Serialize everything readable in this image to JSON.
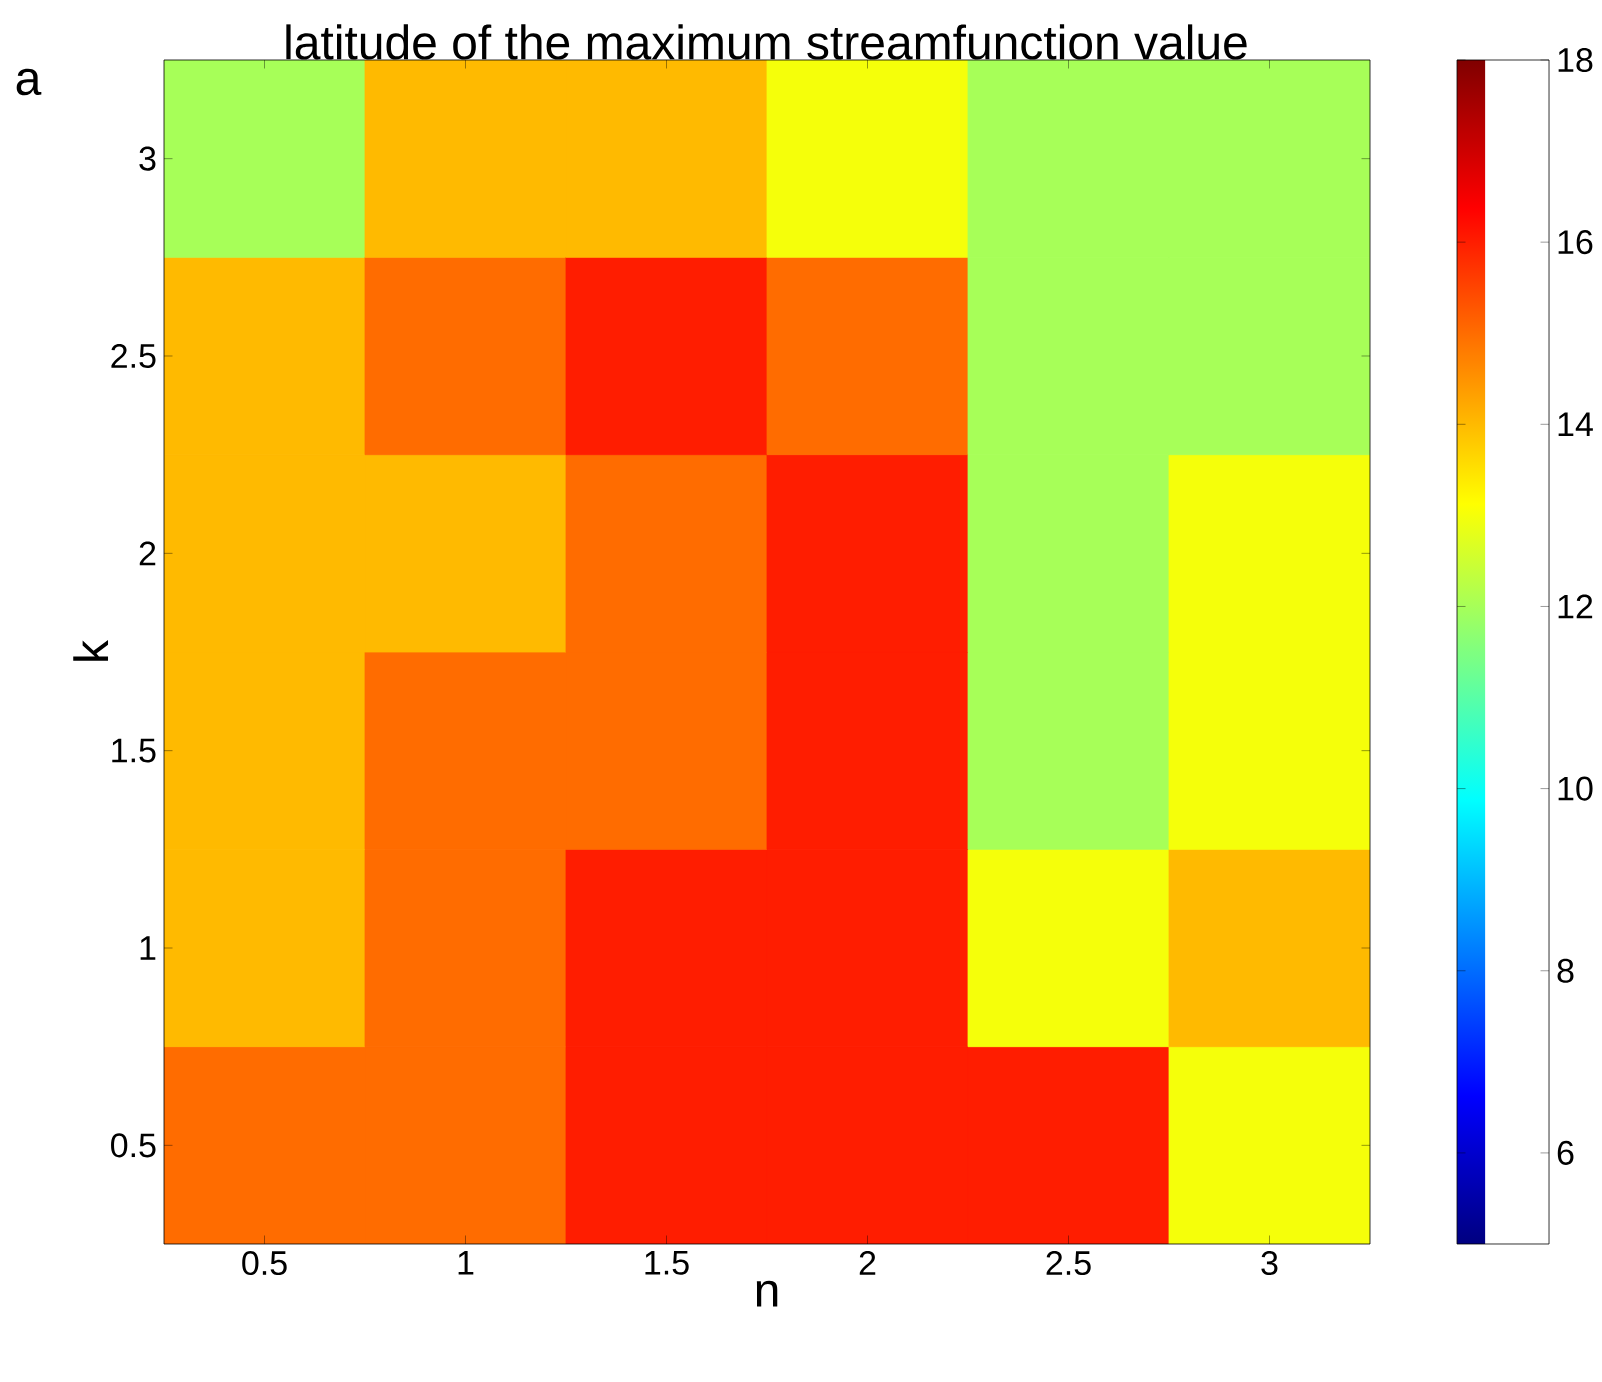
{
  "chart_data": {
    "type": "heatmap",
    "title": "latitude of the maximum streamfunction value",
    "xlabel": "n",
    "ylabel": "k",
    "annotations": [
      "a"
    ],
    "categories": [
      "0.5",
      "1",
      "1.5",
      "2",
      "2.5",
      "3"
    ],
    "y_categories": [
      "3",
      "2.5",
      "2",
      "1.5",
      "1",
      "0.5"
    ],
    "cells": [
      [
        12,
        14,
        14,
        13,
        12,
        12
      ],
      [
        14,
        15,
        16,
        15,
        12,
        12
      ],
      [
        14,
        14,
        15,
        16,
        12,
        13
      ],
      [
        14,
        15,
        15,
        16,
        12,
        13
      ],
      [
        14,
        15,
        16,
        16,
        13,
        14
      ],
      [
        15,
        15,
        16,
        16,
        16,
        13
      ]
    ],
    "clim": [
      5,
      18
    ],
    "cticks": [
      6,
      8,
      10,
      12,
      14,
      16,
      18
    ]
  }
}
